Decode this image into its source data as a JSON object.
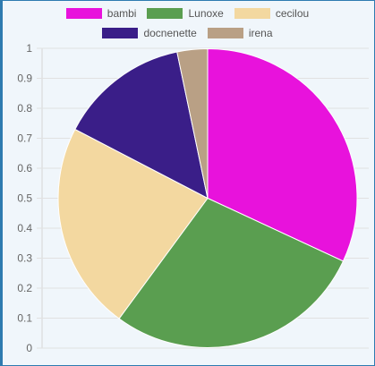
{
  "chart_data": {
    "type": "pie",
    "slices": [
      {
        "label": "bambi",
        "value": 34,
        "color": "#e812dc"
      },
      {
        "label": "Lunoxe",
        "value": 30,
        "color": "#5a9e50"
      },
      {
        "label": "cecilou",
        "value": 24,
        "color": "#f3d8a0"
      },
      {
        "label": "docnenette",
        "value": 15,
        "color": "#3a1e88"
      },
      {
        "label": "irena",
        "value": 3.5,
        "color": "#b9a085"
      }
    ],
    "y_axis": {
      "ticks": [
        "0",
        "0.1",
        "0.2",
        "0.3",
        "0.4",
        "0.5",
        "0.6",
        "0.7",
        "0.8",
        "0.9",
        "1"
      ],
      "ylim": [
        0,
        1
      ]
    },
    "grid": true,
    "legend_position": "top"
  },
  "legend": {
    "items": [
      {
        "label": "bambi",
        "color": "#e812dc"
      },
      {
        "label": "Lunoxe",
        "color": "#5a9e50"
      },
      {
        "label": "cecilou",
        "color": "#f3d8a0"
      },
      {
        "label": "docnenette",
        "color": "#3a1e88"
      },
      {
        "label": "irena",
        "color": "#b9a085"
      }
    ]
  }
}
